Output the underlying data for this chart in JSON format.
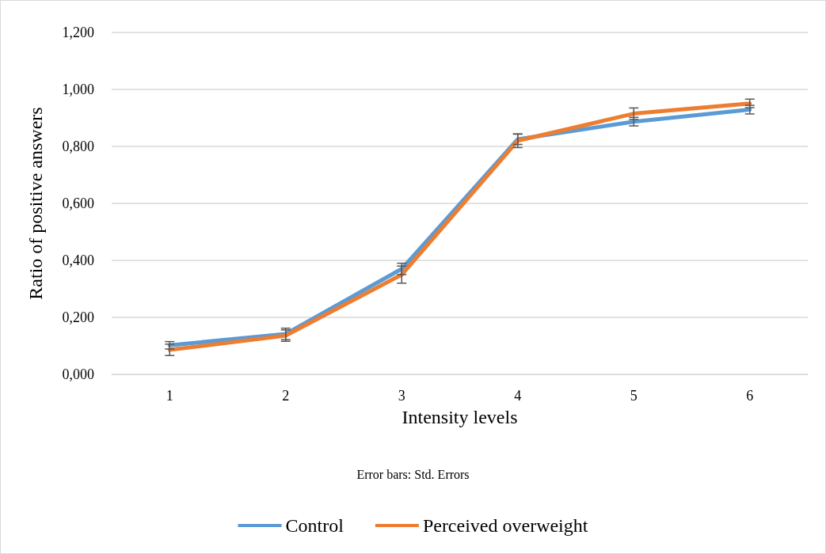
{
  "chart_data": {
    "type": "line",
    "xlabel": "Intensity levels",
    "ylabel": "Ratio of positive answers",
    "categories": [
      "1",
      "2",
      "3",
      "4",
      "5",
      "6"
    ],
    "series": [
      {
        "name": "Control",
        "color": "#5b9bd5",
        "values": [
          0.102,
          0.142,
          0.37,
          0.825,
          0.887,
          0.929
        ],
        "errors": [
          0.013,
          0.02,
          0.02,
          0.018,
          0.015,
          0.015
        ]
      },
      {
        "name": "Perceived overweight",
        "color": "#ed7d31",
        "values": [
          0.086,
          0.136,
          0.35,
          0.82,
          0.915,
          0.951
        ],
        "errors": [
          0.02,
          0.02,
          0.03,
          0.024,
          0.02,
          0.015
        ]
      }
    ],
    "ylim": [
      0,
      1.2
    ],
    "yticks": [
      {
        "value": 0,
        "label": "0,000"
      },
      {
        "value": 0.2,
        "label": "0,200"
      },
      {
        "value": 0.4,
        "label": "0,400"
      },
      {
        "value": 0.6,
        "label": "0,600"
      },
      {
        "value": 0.8,
        "label": "0,800"
      },
      {
        "value": 1,
        "label": "1,000"
      },
      {
        "value": 1.2,
        "label": "1,200"
      }
    ],
    "grid": "y",
    "legend": "bottom",
    "marker": "none",
    "line_style": "solid",
    "annotations": [
      "Error bars: Std. Errors"
    ]
  }
}
